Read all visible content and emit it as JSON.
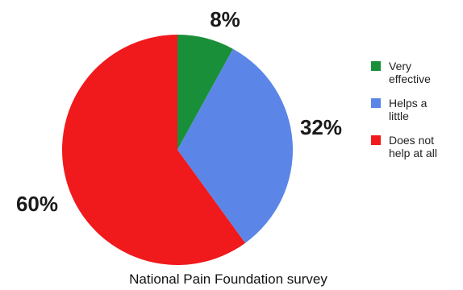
{
  "chart_data": {
    "type": "pie",
    "categories": [
      "Very effective",
      "Helps a little",
      "Does not help at all"
    ],
    "values": [
      8,
      32,
      60
    ],
    "value_labels": [
      "8%",
      "32%",
      "60%"
    ],
    "legend_lines": [
      [
        "Very",
        "effective"
      ],
      [
        "Helps a",
        "little"
      ],
      [
        "Does not",
        "help at all"
      ]
    ],
    "colors": [
      "#1a8f3a",
      "#5b86e8",
      "#f0191c"
    ],
    "caption": "National Pain Foundation survey",
    "legend": "right"
  }
}
